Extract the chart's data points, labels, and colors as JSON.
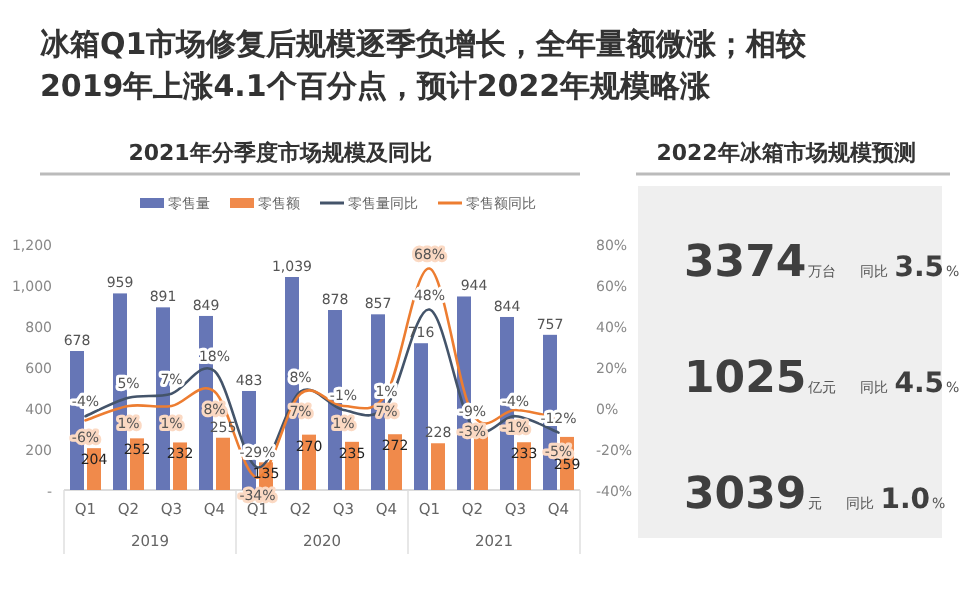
{
  "chart_data": [
    {
      "type": "bar",
      "title": "冰箱Q1市场修复后规模逐季负增长，全年量额微涨；相较2019年上涨4.1个百分点，预计2022年规模略涨",
      "subtitle": "2021年分季度市场规模及同比",
      "categories": [
        "Q1",
        "Q2",
        "Q3",
        "Q4",
        "Q1",
        "Q2",
        "Q3",
        "Q4",
        "Q1",
        "Q2",
        "Q3",
        "Q4"
      ],
      "series": [
        {
          "name": "零售量",
          "type": "bar",
          "color": "#6676b6",
          "values": [
            678,
            959,
            891,
            849,
            483,
            1039,
            878,
            857,
            716,
            944,
            844,
            757
          ],
          "value_labels": [
            "678",
            "959",
            "891",
            "849",
            "483",
            "1,039",
            "878",
            "857",
            "716",
            "944",
            "844",
            "757"
          ]
        },
        {
          "name": "零售额",
          "type": "bar",
          "color": "#f08a4b",
          "values": [
            204,
            252,
            232,
            255,
            135,
            270,
            235,
            272,
            228,
            262,
            233,
            259
          ],
          "value_labels": [
            "204",
            "252",
            "232",
            "255",
            "135",
            "270",
            "235",
            "272",
            "228",
            null,
            "233",
            "259"
          ]
        },
        {
          "name": "零售量同比",
          "type": "line",
          "axis": "y2",
          "color": "#44546a",
          "values": [
            -4,
            5,
            7,
            18,
            -29,
            8,
            -1,
            1,
            48,
            -9,
            -4,
            -12
          ],
          "value_labels": [
            "-4%",
            "5%",
            "7%",
            "18%",
            "-29%",
            "8%",
            "-1%",
            "1%",
            "48%",
            "-9%",
            "-4%",
            "-12%"
          ]
        },
        {
          "name": "零售额同比",
          "type": "line",
          "axis": "y2",
          "color": "#ed7d31",
          "values": [
            -6,
            1,
            1,
            8,
            -34,
            7,
            1,
            7,
            68,
            -3,
            -1,
            -5
          ],
          "value_labels": [
            "-6%",
            "1%",
            "1%",
            "8%",
            "-34%",
            "7%",
            "1%",
            "7%",
            "68%",
            "-3%",
            "-1%",
            "-5%"
          ]
        }
      ],
      "ylim": [
        0,
        1200
      ],
      "yticks": [
        {
          "value": 0,
          "label": "-"
        },
        200,
        400,
        600,
        800,
        {
          "value": 1000,
          "label": "1,000"
        },
        {
          "value": 1200,
          "label": "1,200"
        }
      ],
      "y2lim": [
        -40,
        80
      ],
      "y2ticks": [
        {
          "value": -40,
          "label": "-40%"
        },
        {
          "value": -20,
          "label": "-20%"
        },
        {
          "value": 0,
          "label": "0%"
        },
        {
          "value": 20,
          "label": "20%"
        },
        {
          "value": 40,
          "label": "40%"
        },
        {
          "value": 60,
          "label": "60%"
        },
        {
          "value": 80,
          "label": "80%"
        }
      ],
      "legend": "top",
      "grid": false,
      "annotations": [
        "2019",
        "2020",
        "2021"
      ]
    },
    {
      "type": "other",
      "title": "2022年冰箱市场规模预测",
      "annotations": [
        "3374",
        "万台",
        "同比",
        "3.5",
        "%",
        "1025",
        "亿元",
        "同比",
        "4.5",
        "%",
        "3039",
        "元",
        "同比",
        "1.0",
        "%"
      ]
    }
  ]
}
